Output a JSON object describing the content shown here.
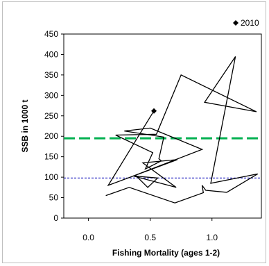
{
  "chart_data": {
    "type": "line",
    "title": "",
    "xlabel": "Fishing Mortality (ages 1-2)",
    "ylabel": "SSB in 1000 t",
    "xlim": [
      -0.2,
      1.4
    ],
    "ylim": [
      0,
      450
    ],
    "xticks": [
      "0.0",
      "0.5",
      "1.0"
    ],
    "xtick_values": [
      0.0,
      0.5,
      1.0
    ],
    "yticks": [
      "0",
      "50",
      "100",
      "150",
      "200",
      "250",
      "300",
      "350",
      "400",
      "450"
    ],
    "ytick_values": [
      0,
      50,
      100,
      150,
      200,
      250,
      300,
      350,
      400,
      450
    ],
    "grid": false,
    "legend_position": "top-right",
    "series": [
      {
        "color": "#000000",
        "x": [
          0.14,
          0.33,
          0.7,
          0.93,
          0.92,
          0.95,
          1.12,
          1.37,
          0.99,
          1.19,
          0.94,
          1.36,
          0.75,
          0.55,
          0.22,
          0.52,
          0.46,
          0.59,
          0.57,
          0.61,
          0.29,
          0.5,
          0.92,
          0.38,
          0.48,
          0.56,
          0.36,
          0.71,
          0.44,
          0.72,
          0.16,
          0.53
        ],
        "y": [
          55,
          75,
          37,
          62,
          80,
          68,
          63,
          108,
          85,
          395,
          283,
          260,
          350,
          205,
          203,
          160,
          120,
          140,
          145,
          198,
          213,
          220,
          168,
          105,
          75,
          98,
          103,
          75,
          135,
          143,
          80,
          262
        ]
      }
    ],
    "reference_lines": [
      {
        "axis": "y",
        "value": 195,
        "color": "#00b050",
        "style": "long-dash"
      },
      {
        "axis": "y",
        "value": 98,
        "color": "#1f1fbf",
        "style": "dot"
      }
    ],
    "legend": [
      {
        "marker": "diamond",
        "label": "2010"
      }
    ],
    "marked_point": {
      "x": 0.53,
      "y": 262,
      "label": "2010"
    }
  }
}
